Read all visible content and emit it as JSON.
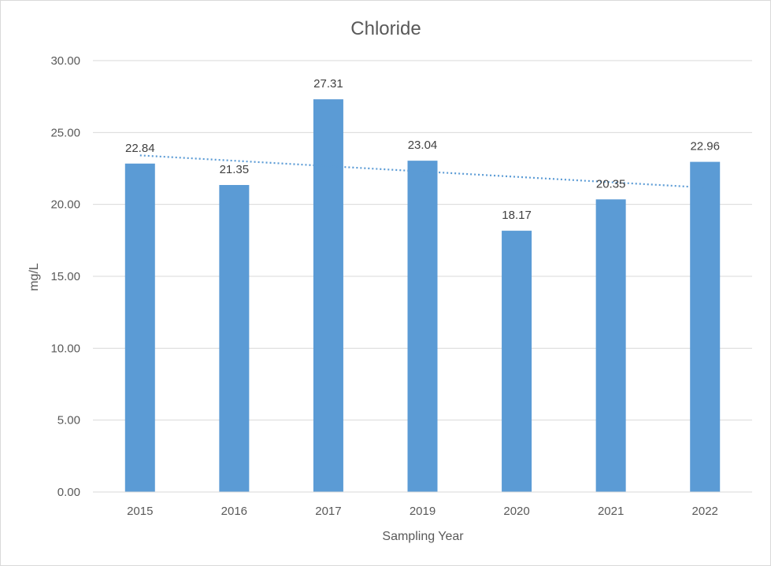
{
  "chart_data": {
    "type": "bar",
    "title": "Chloride",
    "xlabel": "Sampling Year",
    "ylabel": "mg/L",
    "categories": [
      "2015",
      "2016",
      "2017",
      "2019",
      "2020",
      "2021",
      "2022"
    ],
    "values": [
      22.84,
      21.35,
      27.31,
      23.04,
      18.17,
      20.35,
      22.96
    ],
    "value_labels": [
      "22.84",
      "21.35",
      "27.31",
      "23.04",
      "18.17",
      "20.35",
      "22.96"
    ],
    "yticks": [
      "0.00",
      "5.00",
      "10.00",
      "15.00",
      "20.00",
      "25.00",
      "30.00"
    ],
    "ylim": [
      0,
      30
    ],
    "grid": true,
    "legend": "none",
    "trendline": {
      "type": "linear",
      "style": "dotted",
      "start": 23.41,
      "end": 21.17
    },
    "colors": {
      "bar": "#5b9bd5",
      "trendline": "#5b9bd5",
      "grid": "#d9d9d9"
    }
  }
}
